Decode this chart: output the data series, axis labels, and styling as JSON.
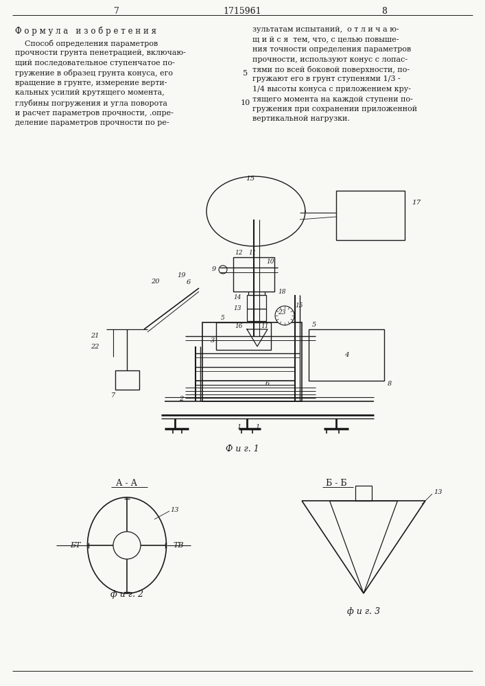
{
  "page_number_left": "7",
  "patent_number": "1715961",
  "page_number_right": "8",
  "header_title": "Ф о р м у л а   и з о б р е т е н и я",
  "right_col_text": "зультатам испытаний,  о т л и ч а ю-\nщ и й с я  тем, что, с целью повыше-\nния точности определения параметров\nпрочности, используют конус с лопас-\nтями по всей боковой поверхности, по-\nгружают его в грунт ступенями 1/3 -\n1/4 высоты конуса с приложением кру-\nтящего момента на каждой ступени по-\nгружения при сохранении приложенной\nвертикальной нагрузки.",
  "left_col_text": "    Способ определения параметров\nпрочности грунта пенетрацией, включаю-\nщий последовательное ступенчатое по-\nгружение в образец грунта конуса, его\nвращение в грунте, измерение верти-\nкальных усилий крутящего момента,\nглубины погружения и угла поворота\nи расчет параметров прочности, .опре-\nделение параметров прочности по ре-",
  "fig1_label": "Ф и г. 1",
  "fig2_label": "ф и г. 2",
  "fig3_label": "ф и г. 3",
  "fig2_section": "А - А",
  "fig3_section": "Б - Б",
  "fig2_label_left": "БТ",
  "fig2_label_right": "ТВ",
  "bg_color": "#f8f8f5",
  "text_color": "#1a1a1a",
  "line_color": "#1a1a1a"
}
